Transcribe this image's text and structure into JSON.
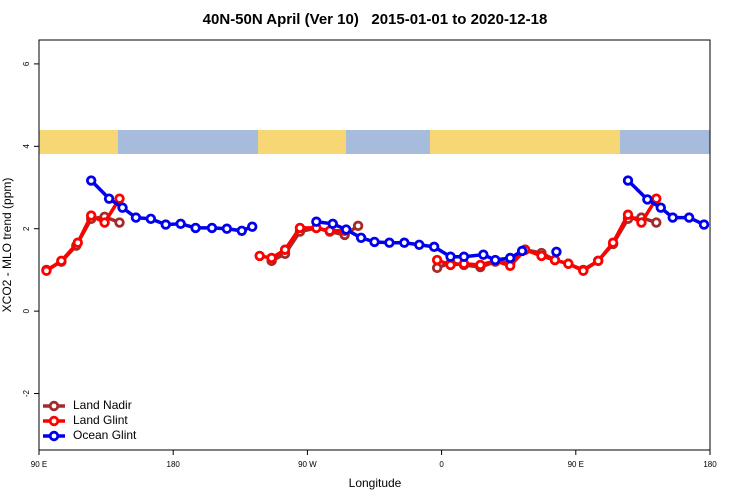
{
  "chart_data": {
    "type": "line",
    "title": "40N-50N April (Ver 10)   2015-01-01 to 2020-12-18",
    "xlabel": "Longitude",
    "ylabel": "XCO2 - MLO trend (ppm)",
    "xlim": [
      90,
      540
    ],
    "xticks": [
      {
        "value": 90,
        "label": "90 E"
      },
      180,
      {
        "value": 270,
        "label": "90 W"
      },
      {
        "value": 360,
        "label": "0"
      },
      {
        "value": 450,
        "label": "90 E"
      },
      {
        "value": 540,
        "label": "180"
      }
    ],
    "ylim": [
      -3.37,
      6.58
    ],
    "yticks": [
      -2,
      0,
      2,
      4,
      6
    ],
    "legend": "bottom-left",
    "series": [
      {
        "name": "Land Nadir",
        "color": "#a52a2a",
        "x": [
          95,
          105,
          115,
          125,
          134,
          144,
          null,
          246,
          255,
          265,
          276,
          285,
          295,
          304,
          null,
          357,
          366,
          375,
          386,
          396,
          406,
          416,
          427,
          436,
          445,
          455,
          465,
          475,
          485,
          494,
          504
        ],
        "values": [
          1.0,
          1.2,
          1.59,
          2.24,
          2.29,
          2.15,
          null,
          1.22,
          1.39,
          1.93,
          2.02,
          1.93,
          1.85,
          2.07,
          null,
          1.05,
          1.17,
          1.12,
          1.07,
          1.2,
          1.17,
          1.49,
          1.41,
          1.24,
          1.15,
          1.0,
          1.22,
          1.63,
          2.24,
          2.27,
          2.15
        ]
      },
      {
        "name": "Land Glint",
        "color": "#ff0000",
        "x": [
          95,
          105,
          116,
          125,
          134,
          144,
          null,
          238,
          246,
          255,
          265,
          276,
          285,
          295,
          null,
          357,
          366,
          375,
          386,
          396,
          406,
          416,
          427,
          436,
          445,
          455,
          465,
          475,
          485,
          494,
          504
        ],
        "values": [
          0.98,
          1.22,
          1.66,
          2.32,
          2.15,
          2.73,
          null,
          1.34,
          1.29,
          1.49,
          2.02,
          2.02,
          1.95,
          1.95,
          null,
          1.24,
          1.12,
          1.15,
          1.12,
          1.22,
          1.1,
          1.49,
          1.34,
          1.24,
          1.15,
          0.98,
          1.22,
          1.66,
          2.34,
          2.15,
          2.73
        ]
      },
      {
        "name": "Ocean Glint",
        "color": "#0000ee",
        "x": [
          125,
          137,
          146,
          155,
          165,
          175,
          185,
          195,
          206,
          216,
          226,
          233,
          null,
          276,
          287,
          296,
          306,
          315,
          325,
          335,
          345,
          355,
          366,
          375,
          388,
          396,
          406,
          414,
          null,
          437,
          null,
          485,
          498,
          507,
          515,
          526,
          536
        ],
        "values": [
          3.17,
          2.73,
          2.51,
          2.27,
          2.24,
          2.1,
          2.12,
          2.02,
          2.02,
          2.0,
          1.95,
          2.05,
          null,
          2.17,
          2.12,
          1.98,
          1.78,
          1.68,
          1.66,
          1.66,
          1.61,
          1.56,
          1.32,
          1.32,
          1.37,
          1.24,
          1.29,
          1.46,
          null,
          1.44,
          null,
          3.17,
          2.71,
          2.51,
          2.27,
          2.27,
          2.1
        ]
      }
    ]
  }
}
